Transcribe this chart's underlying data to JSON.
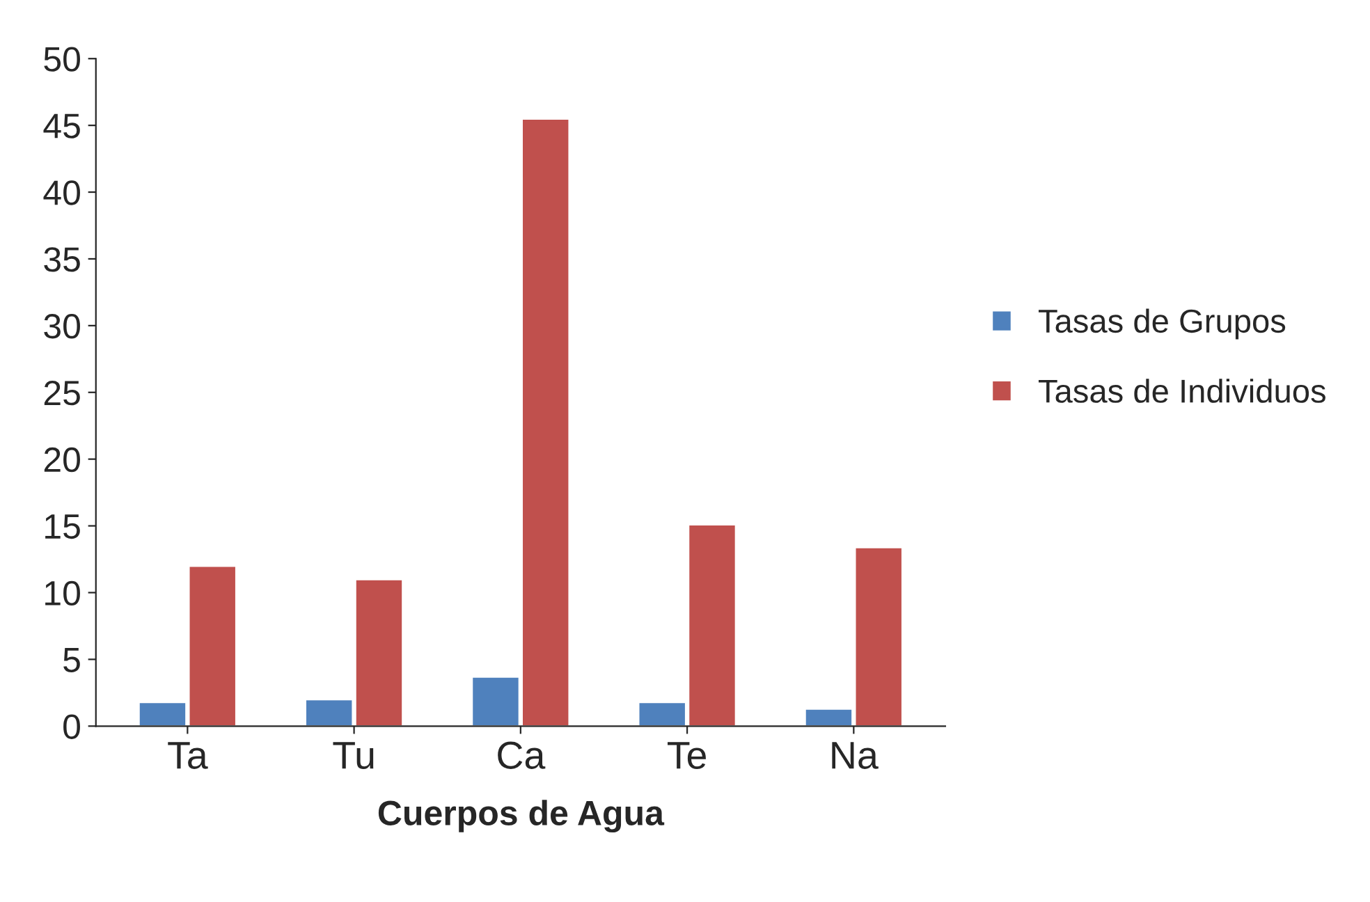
{
  "chart_data": {
    "type": "bar",
    "xlabel": "Cuerpos de Agua",
    "categories": [
      "Ta",
      "Tu",
      "Ca",
      "Te",
      "Na"
    ],
    "series": [
      {
        "name": "Tasas de Grupos",
        "color": "#4f81bd",
        "values": [
          1.8,
          2.0,
          3.7,
          1.8,
          1.3
        ]
      },
      {
        "name": "Tasas de Individuos",
        "color": "#c0504d",
        "values": [
          12,
          11,
          45.5,
          15.1,
          13.4
        ]
      }
    ],
    "ylim": [
      0,
      50
    ],
    "yticks": [
      0,
      5,
      10,
      15,
      20,
      25,
      30,
      35,
      40,
      45,
      50
    ],
    "grid": false,
    "legend": "right"
  }
}
